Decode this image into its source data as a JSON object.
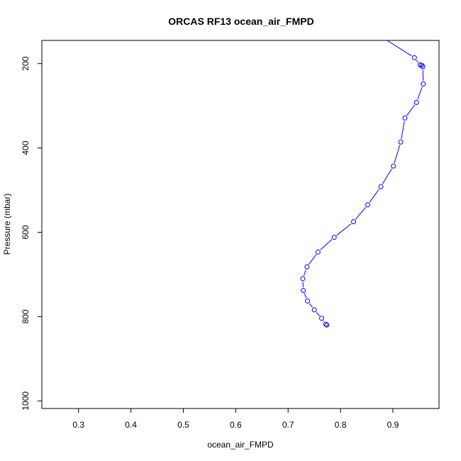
{
  "chart_data": {
    "type": "line",
    "title": "ORCAS RF13 ocean_air_FMPD",
    "xlabel": "ocean_air_FMPD",
    "ylabel": "Pressure (mbar)",
    "xlim": [
      0.23,
      0.988
    ],
    "ylim": [
      1018,
      145
    ],
    "y_inverted": true,
    "x_ticks": [
      0.3,
      0.4,
      0.5,
      0.6,
      0.7,
      0.8,
      0.9
    ],
    "x_tick_labels": [
      "0.3",
      "0.4",
      "0.5",
      "0.6",
      "0.7",
      "0.8",
      "0.9"
    ],
    "y_ticks": [
      200,
      400,
      600,
      800,
      1000
    ],
    "y_tick_labels": [
      "200",
      "400",
      "600",
      "800",
      "1000"
    ],
    "grid": false,
    "series": [
      {
        "color": "#0000ff",
        "marker": "open-circle",
        "points": [
          [
            0.889,
            145
          ],
          [
            0.941,
            186
          ],
          [
            0.952,
            203
          ],
          [
            0.955,
            204
          ],
          [
            0.957,
            207
          ],
          [
            0.958,
            248
          ],
          [
            0.945,
            292
          ],
          [
            0.923,
            329
          ],
          [
            0.915,
            386
          ],
          [
            0.901,
            443
          ],
          [
            0.877,
            492
          ],
          [
            0.852,
            535
          ],
          [
            0.825,
            575
          ],
          [
            0.788,
            612
          ],
          [
            0.757,
            647
          ],
          [
            0.736,
            682
          ],
          [
            0.728,
            710
          ],
          [
            0.729,
            738
          ],
          [
            0.737,
            763
          ],
          [
            0.75,
            784
          ],
          [
            0.764,
            804
          ],
          [
            0.772,
            818
          ],
          [
            0.774,
            820
          ]
        ]
      }
    ]
  }
}
